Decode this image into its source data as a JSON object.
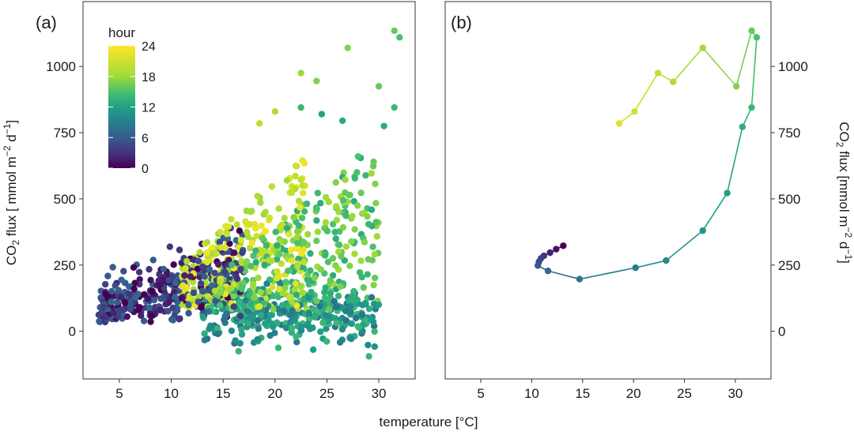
{
  "chart_data": [
    {
      "type": "scatter",
      "panel_label": "(a)",
      "xlabel": "temperature [°C]",
      "ylabel": "CO2 flux [ mmol m−2 d−1]",
      "xlim": [
        1.5,
        33.5
      ],
      "ylim": [
        -180,
        1245
      ],
      "x_ticks": [
        5,
        10,
        15,
        20,
        25,
        30
      ],
      "y_ticks": [
        0,
        250,
        500,
        750,
        1000
      ],
      "grid": false,
      "colorbar": {
        "title": "hour",
        "range": [
          0,
          24
        ],
        "ticks": [
          0,
          6,
          12,
          18,
          24
        ],
        "colormap": "viridis",
        "placement": "top-left"
      },
      "points": [
        {
          "x": 31.5,
          "y": 1135,
          "hour": 16
        },
        {
          "x": 32.0,
          "y": 1110,
          "hour": 15
        },
        {
          "x": 27.0,
          "y": 1070,
          "hour": 17
        },
        {
          "x": 22.5,
          "y": 975,
          "hour": 18
        },
        {
          "x": 24.0,
          "y": 945,
          "hour": 17
        },
        {
          "x": 30.0,
          "y": 925,
          "hour": 16
        },
        {
          "x": 20.0,
          "y": 830,
          "hour": 19
        },
        {
          "x": 18.5,
          "y": 785,
          "hour": 20
        },
        {
          "x": 31.5,
          "y": 845,
          "hour": 14
        },
        {
          "x": 30.5,
          "y": 775,
          "hour": 13
        },
        {
          "x": 24.5,
          "y": 820,
          "hour": 12
        },
        {
          "x": 22.5,
          "y": 845,
          "hour": 14
        },
        {
          "x": 26.5,
          "y": 795,
          "hour": 13
        },
        {
          "x": 28.0,
          "y": 660,
          "hour": 15
        },
        {
          "x": 29.5,
          "y": 640,
          "hour": 16
        }
      ],
      "cloud": {
        "n": 1250
      }
    },
    {
      "type": "line",
      "panel_label": "(b)",
      "xlabel": "",
      "ylabel": "CO2 flux [mmol m−2 d−1]",
      "xlim": [
        1.5,
        33.5
      ],
      "ylim": [
        -180,
        1245
      ],
      "x_ticks": [
        5,
        10,
        15,
        20,
        25,
        30
      ],
      "y_ticks": [
        0,
        250,
        500,
        750,
        1000
      ],
      "grid": false,
      "series": [
        {
          "points": [
            {
              "x": 13.1,
              "y": 323,
              "hour": 0
            },
            {
              "x": 12.4,
              "y": 310,
              "hour": 1
            },
            {
              "x": 11.8,
              "y": 297,
              "hour": 2
            },
            {
              "x": 11.2,
              "y": 285,
              "hour": 3
            },
            {
              "x": 10.9,
              "y": 275,
              "hour": 4
            },
            {
              "x": 10.7,
              "y": 262,
              "hour": 5
            },
            {
              "x": 10.6,
              "y": 248,
              "hour": 6
            },
            {
              "x": 11.6,
              "y": 228,
              "hour": 7
            },
            {
              "x": 14.7,
              "y": 197,
              "hour": 8
            },
            {
              "x": 20.2,
              "y": 240,
              "hour": 9
            },
            {
              "x": 23.2,
              "y": 267,
              "hour": 10
            },
            {
              "x": 26.8,
              "y": 380,
              "hour": 11
            },
            {
              "x": 29.2,
              "y": 522,
              "hour": 12
            },
            {
              "x": 30.7,
              "y": 772,
              "hour": 13
            },
            {
              "x": 31.6,
              "y": 845,
              "hour": 14
            },
            {
              "x": 32.1,
              "y": 1110,
              "hour": 15
            },
            {
              "x": 31.6,
              "y": 1135,
              "hour": 16
            },
            {
              "x": 30.1,
              "y": 925,
              "hour": 17
            },
            {
              "x": 26.8,
              "y": 1070,
              "hour": 18
            },
            {
              "x": 23.9,
              "y": 942,
              "hour": 19
            },
            {
              "x": 22.4,
              "y": 975,
              "hour": 20
            },
            {
              "x": 20.1,
              "y": 830,
              "hour": 21
            },
            {
              "x": 18.6,
              "y": 785,
              "hour": 22
            }
          ]
        }
      ]
    }
  ]
}
